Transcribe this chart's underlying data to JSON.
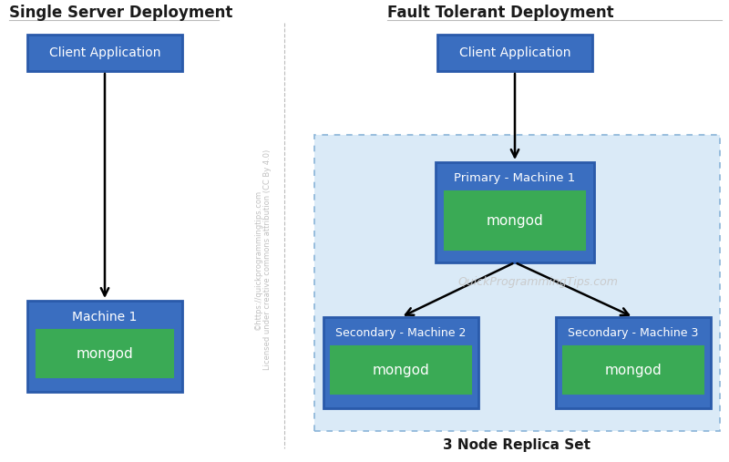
{
  "title_left": "Single Server Deployment",
  "title_right": "Fault Tolerant Deployment",
  "blue_box_color": "#3a6ec0",
  "green_box_color": "#3aaa55",
  "light_blue_bg": "#daeaf7",
  "border_color": "#8ab4d8",
  "text_white": "#ffffff",
  "text_dark": "#1a1a1a",
  "background_color": "#ffffff",
  "watermark": "QuickProgrammingTips.com",
  "credit_line1": "©https://quickprogrammingtips.com",
  "credit_line2": "Licensed under creative commons attribution (CC By 4.0)",
  "single_client_label": "Client Application",
  "single_machine_label": "Machine 1",
  "single_mongod_label": "mongod",
  "ft_client_label": "Client Application",
  "ft_primary_label": "Primary - Machine 1",
  "ft_primary_mongod": "mongod",
  "ft_sec2_label": "Secondary - Machine 2",
  "ft_sec2_mongod": "mongod",
  "ft_sec3_label": "Secondary - Machine 3",
  "ft_sec3_mongod": "mongod",
  "replica_set_label": "3 Node Replica Set"
}
